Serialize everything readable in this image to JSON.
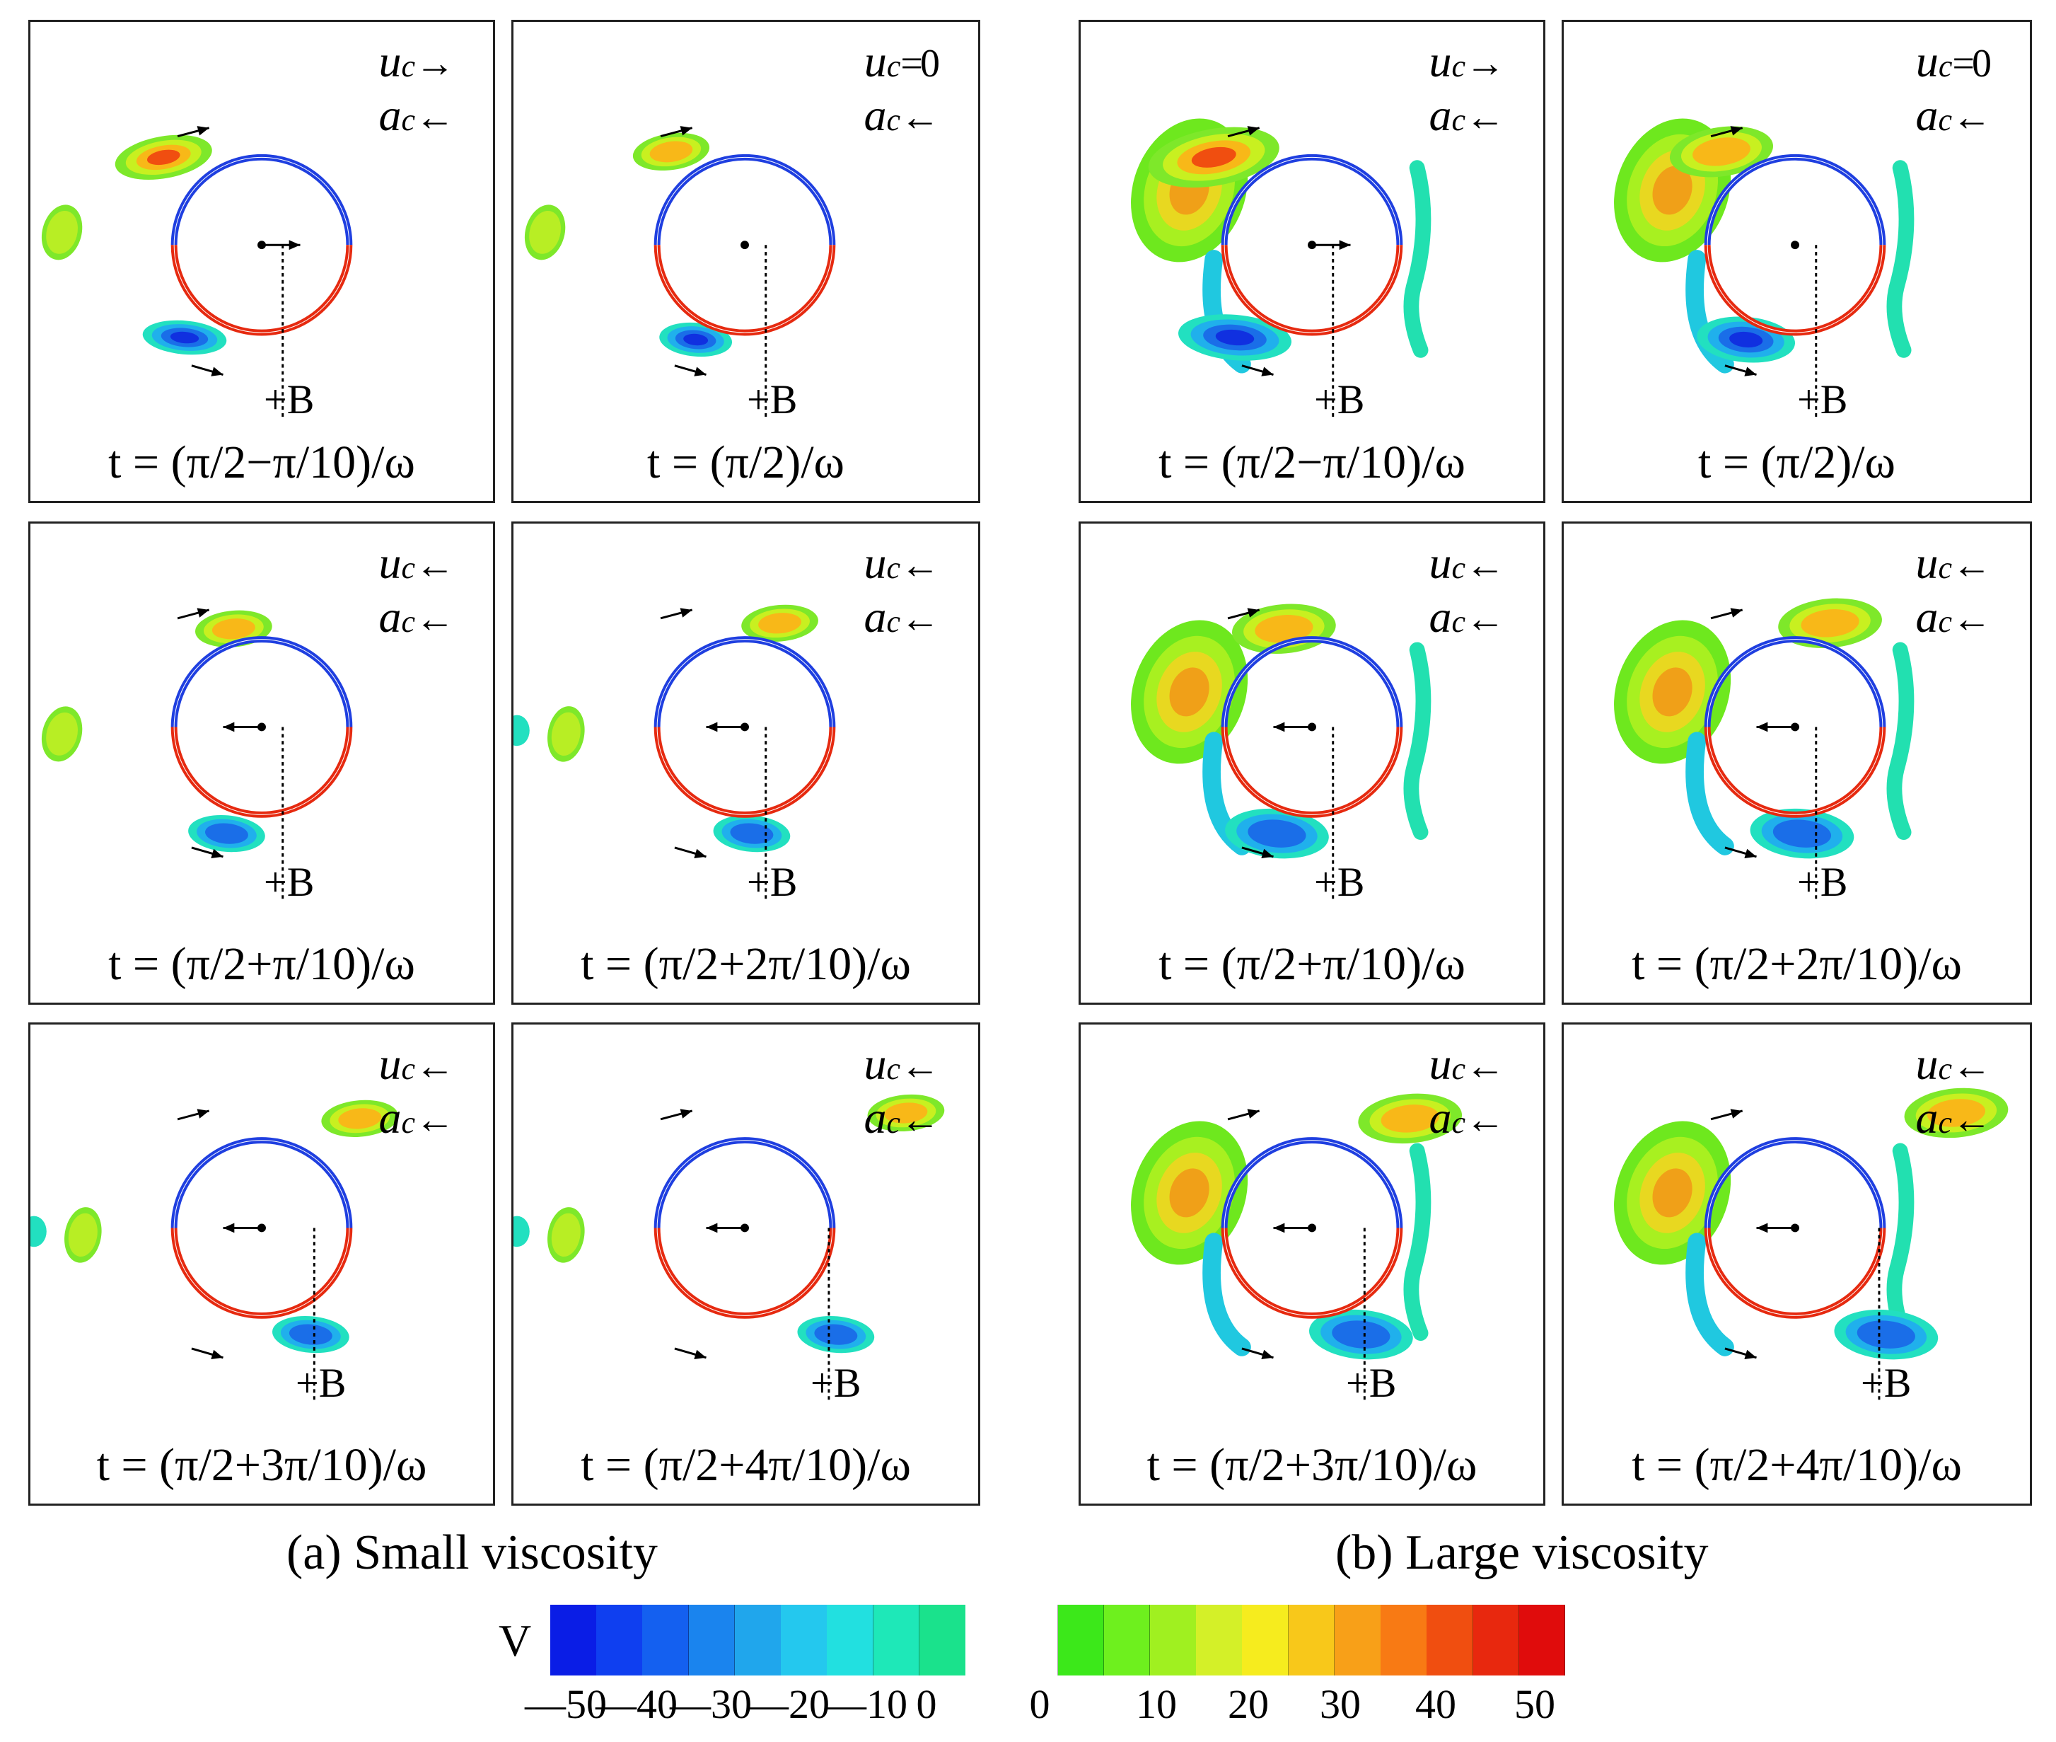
{
  "figure": {
    "panels_small": [
      {
        "u_label": "u",
        "u_sub": "c",
        "u_value": "→",
        "a_label": "a",
        "a_sub": "c",
        "a_value": "←",
        "b_label": "+B",
        "t_label": "t = (π/2−π/10)/ω",
        "state": "pos"
      },
      {
        "u_label": "u",
        "u_sub": "c",
        "u_value": "=0",
        "a_label": "a",
        "a_sub": "c",
        "a_value": "←",
        "b_label": "+B",
        "t_label": "t = (π/2)/ω",
        "state": "zero"
      },
      {
        "u_label": "u",
        "u_sub": "c",
        "u_value": "←",
        "a_label": "a",
        "a_sub": "c",
        "a_value": "←",
        "b_label": "+B",
        "t_label": "t = (π/2+π/10)/ω",
        "state": "neg"
      },
      {
        "u_label": "u",
        "u_sub": "c",
        "u_value": "←",
        "a_label": "a",
        "a_sub": "c",
        "a_value": "←",
        "b_label": "+B",
        "t_label": "t = (π/2+2π/10)/ω",
        "state": "neg"
      },
      {
        "u_label": "u",
        "u_sub": "c",
        "u_value": "←",
        "a_label": "a",
        "a_sub": "c",
        "a_value": "←",
        "b_label": "+B",
        "t_label": "t = (π/2+3π/10)/ω",
        "state": "neg"
      },
      {
        "u_label": "u",
        "u_sub": "c",
        "u_value": "←",
        "a_label": "a",
        "a_sub": "c",
        "a_value": "←",
        "b_label": "+B",
        "t_label": "t = (π/2+4π/10)/ω",
        "state": "neg"
      }
    ],
    "panels_large": [
      {
        "u_label": "u",
        "u_sub": "c",
        "u_value": "→",
        "a_label": "a",
        "a_sub": "c",
        "a_value": "←",
        "b_label": "+B",
        "t_label": "t = (π/2−π/10)/ω",
        "state": "pos"
      },
      {
        "u_label": "u",
        "u_sub": "c",
        "u_value": "=0",
        "a_label": "a",
        "a_sub": "c",
        "a_value": "←",
        "b_label": "+B",
        "t_label": "t = (π/2)/ω",
        "state": "zero"
      },
      {
        "u_label": "u",
        "u_sub": "c",
        "u_value": "←",
        "a_label": "a",
        "a_sub": "c",
        "a_value": "←",
        "b_label": "+B",
        "t_label": "t = (π/2+π/10)/ω",
        "state": "neg"
      },
      {
        "u_label": "u",
        "u_sub": "c",
        "u_value": "←",
        "a_label": "a",
        "a_sub": "c",
        "a_value": "←",
        "b_label": "+B",
        "t_label": "t = (π/2+2π/10)/ω",
        "state": "neg"
      },
      {
        "u_label": "u",
        "u_sub": "c",
        "u_value": "←",
        "a_label": "a",
        "a_sub": "c",
        "a_value": "←",
        "b_label": "+B",
        "t_label": "t = (π/2+3π/10)/ω",
        "state": "neg"
      },
      {
        "u_label": "u",
        "u_sub": "c",
        "u_value": "←",
        "a_label": "a",
        "a_sub": "c",
        "a_value": "←",
        "b_label": "+B",
        "t_label": "t = (π/2+4π/10)/ω",
        "state": "neg"
      }
    ],
    "caption_a": "(a) Small viscosity",
    "caption_b": "(b) Large viscosity"
  },
  "colorbar": {
    "label": "V",
    "tick_labels": [
      "—50",
      "—40",
      "—30",
      "—20",
      "—10",
      "0",
      "0",
      "10",
      "20",
      "30",
      "40",
      "50"
    ],
    "colors": [
      "#0a1de6",
      "#0f3ff0",
      "#1460f0",
      "#1a84ee",
      "#20a6ec",
      "#24c8ee",
      "#22e0e0",
      "#1ee8b8",
      "#1ae28c",
      "#ffffff",
      "#ffffff",
      "#3ce81a",
      "#6ef01e",
      "#a0f020",
      "#d4f028",
      "#f6ec1e",
      "#f8c81a",
      "#f8a018",
      "#f87a14",
      "#f04e10",
      "#e8280e",
      "#e00c0c"
    ]
  },
  "colors": {
    "cyl_top": "#1f3fe0",
    "cyl_bottom": "#e62a10",
    "pos_vortex": "#f07818",
    "neg_vortex": "#2a6ae8",
    "weak": "#8ee82c"
  }
}
